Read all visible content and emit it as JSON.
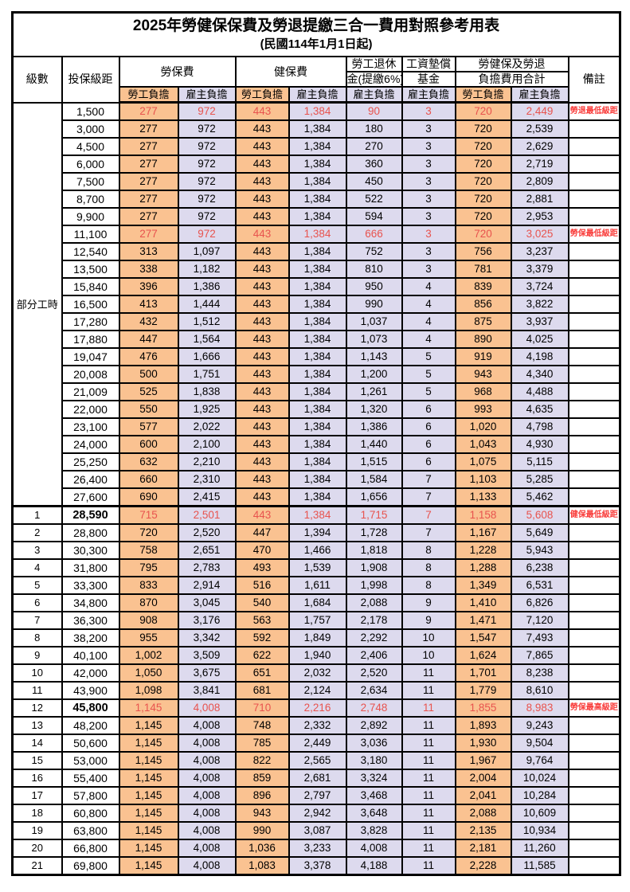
{
  "title": "2025年勞健保保費及勞退提繳三合一費用對照參考用表",
  "subtitle": "(民國114年1月1日起)",
  "header": {
    "level": "級數",
    "bracket": "投保級距",
    "labor_insurance": "勞保費",
    "health_insurance": "健保費",
    "pension_line1": "勞工退休",
    "pension_line2": "金(提繳6%)",
    "wage_fund_line1": "工資墊償",
    "wage_fund_line2": "基金",
    "total_line1": "勞健保及勞退",
    "total_line2": "負擔費用合計",
    "remark": "備註",
    "employee_label": "勞工負擔",
    "employer_label": "雇主負擔"
  },
  "colors": {
    "employee_bg": "#FAC291",
    "employer_bg": "#DDDAEE",
    "value_red": "#E8534E",
    "remark_red": "#F93D3B"
  },
  "part_time_label": "部分工時",
  "rows": [
    {
      "level": "部分工時",
      "level_rowspan": 23,
      "bracket": "1,500",
      "v": [
        "277",
        "972",
        "443",
        "1,384",
        "90",
        "3",
        "720",
        "2,449"
      ],
      "remark": "勞退最低級距",
      "red": true,
      "bold": false
    },
    {
      "level": null,
      "bracket": "3,000",
      "v": [
        "277",
        "972",
        "443",
        "1,384",
        "180",
        "3",
        "720",
        "2,539"
      ],
      "remark": "",
      "red": false,
      "bold": false
    },
    {
      "level": null,
      "bracket": "4,500",
      "v": [
        "277",
        "972",
        "443",
        "1,384",
        "270",
        "3",
        "720",
        "2,629"
      ],
      "remark": "",
      "red": false,
      "bold": false
    },
    {
      "level": null,
      "bracket": "6,000",
      "v": [
        "277",
        "972",
        "443",
        "1,384",
        "360",
        "3",
        "720",
        "2,719"
      ],
      "remark": "",
      "red": false,
      "bold": false
    },
    {
      "level": null,
      "bracket": "7,500",
      "v": [
        "277",
        "972",
        "443",
        "1,384",
        "450",
        "3",
        "720",
        "2,809"
      ],
      "remark": "",
      "red": false,
      "bold": false
    },
    {
      "level": null,
      "bracket": "8,700",
      "v": [
        "277",
        "972",
        "443",
        "1,384",
        "522",
        "3",
        "720",
        "2,881"
      ],
      "remark": "",
      "red": false,
      "bold": false
    },
    {
      "level": null,
      "bracket": "9,900",
      "v": [
        "277",
        "972",
        "443",
        "1,384",
        "594",
        "3",
        "720",
        "2,953"
      ],
      "remark": "",
      "red": false,
      "bold": false
    },
    {
      "level": null,
      "bracket": "11,100",
      "v": [
        "277",
        "972",
        "443",
        "1,384",
        "666",
        "3",
        "720",
        "3,025"
      ],
      "remark": "勞保最低級距",
      "red": true,
      "bold": false
    },
    {
      "level": null,
      "bracket": "12,540",
      "v": [
        "313",
        "1,097",
        "443",
        "1,384",
        "752",
        "3",
        "756",
        "3,237"
      ],
      "remark": "",
      "red": false,
      "bold": false
    },
    {
      "level": null,
      "bracket": "13,500",
      "v": [
        "338",
        "1,182",
        "443",
        "1,384",
        "810",
        "3",
        "781",
        "3,379"
      ],
      "remark": "",
      "red": false,
      "bold": false
    },
    {
      "level": null,
      "bracket": "15,840",
      "v": [
        "396",
        "1,386",
        "443",
        "1,384",
        "950",
        "4",
        "839",
        "3,724"
      ],
      "remark": "",
      "red": false,
      "bold": false
    },
    {
      "level": null,
      "bracket": "16,500",
      "v": [
        "413",
        "1,444",
        "443",
        "1,384",
        "990",
        "4",
        "856",
        "3,822"
      ],
      "remark": "",
      "red": false,
      "bold": false
    },
    {
      "level": null,
      "bracket": "17,280",
      "v": [
        "432",
        "1,512",
        "443",
        "1,384",
        "1,037",
        "4",
        "875",
        "3,937"
      ],
      "remark": "",
      "red": false,
      "bold": false
    },
    {
      "level": null,
      "bracket": "17,880",
      "v": [
        "447",
        "1,564",
        "443",
        "1,384",
        "1,073",
        "4",
        "890",
        "4,025"
      ],
      "remark": "",
      "red": false,
      "bold": false
    },
    {
      "level": null,
      "bracket": "19,047",
      "v": [
        "476",
        "1,666",
        "443",
        "1,384",
        "1,143",
        "5",
        "919",
        "4,198"
      ],
      "remark": "",
      "red": false,
      "bold": false
    },
    {
      "level": null,
      "bracket": "20,008",
      "v": [
        "500",
        "1,751",
        "443",
        "1,384",
        "1,200",
        "5",
        "943",
        "4,340"
      ],
      "remark": "",
      "red": false,
      "bold": false
    },
    {
      "level": null,
      "bracket": "21,009",
      "v": [
        "525",
        "1,838",
        "443",
        "1,384",
        "1,261",
        "5",
        "968",
        "4,488"
      ],
      "remark": "",
      "red": false,
      "bold": false
    },
    {
      "level": null,
      "bracket": "22,000",
      "v": [
        "550",
        "1,925",
        "443",
        "1,384",
        "1,320",
        "6",
        "993",
        "4,635"
      ],
      "remark": "",
      "red": false,
      "bold": false
    },
    {
      "level": null,
      "bracket": "23,100",
      "v": [
        "577",
        "2,022",
        "443",
        "1,384",
        "1,386",
        "6",
        "1,020",
        "4,798"
      ],
      "remark": "",
      "red": false,
      "bold": false
    },
    {
      "level": null,
      "bracket": "24,000",
      "v": [
        "600",
        "2,100",
        "443",
        "1,384",
        "1,440",
        "6",
        "1,043",
        "4,930"
      ],
      "remark": "",
      "red": false,
      "bold": false
    },
    {
      "level": null,
      "bracket": "25,250",
      "v": [
        "632",
        "2,210",
        "443",
        "1,384",
        "1,515",
        "6",
        "1,075",
        "5,115"
      ],
      "remark": "",
      "red": false,
      "bold": false
    },
    {
      "level": null,
      "bracket": "26,400",
      "v": [
        "660",
        "2,310",
        "443",
        "1,384",
        "1,584",
        "7",
        "1,103",
        "5,285"
      ],
      "remark": "",
      "red": false,
      "bold": false
    },
    {
      "level": null,
      "bracket": "27,600",
      "v": [
        "690",
        "2,415",
        "443",
        "1,384",
        "1,656",
        "7",
        "1,133",
        "5,462"
      ],
      "remark": "",
      "red": false,
      "bold": false
    },
    {
      "level": "1",
      "bracket": "28,590",
      "v": [
        "715",
        "2,501",
        "443",
        "1,384",
        "1,715",
        "7",
        "1,158",
        "5,608"
      ],
      "remark": "健保最低級距",
      "red": true,
      "bold": true,
      "thick_top": true
    },
    {
      "level": "2",
      "bracket": "28,800",
      "v": [
        "720",
        "2,520",
        "447",
        "1,394",
        "1,728",
        "7",
        "1,167",
        "5,649"
      ],
      "remark": "",
      "red": false,
      "bold": false
    },
    {
      "level": "3",
      "bracket": "30,300",
      "v": [
        "758",
        "2,651",
        "470",
        "1,466",
        "1,818",
        "8",
        "1,228",
        "5,943"
      ],
      "remark": "",
      "red": false,
      "bold": false
    },
    {
      "level": "4",
      "bracket": "31,800",
      "v": [
        "795",
        "2,783",
        "493",
        "1,539",
        "1,908",
        "8",
        "1,288",
        "6,238"
      ],
      "remark": "",
      "red": false,
      "bold": false
    },
    {
      "level": "5",
      "bracket": "33,300",
      "v": [
        "833",
        "2,914",
        "516",
        "1,611",
        "1,998",
        "8",
        "1,349",
        "6,531"
      ],
      "remark": "",
      "red": false,
      "bold": false
    },
    {
      "level": "6",
      "bracket": "34,800",
      "v": [
        "870",
        "3,045",
        "540",
        "1,684",
        "2,088",
        "9",
        "1,410",
        "6,826"
      ],
      "remark": "",
      "red": false,
      "bold": false
    },
    {
      "level": "7",
      "bracket": "36,300",
      "v": [
        "908",
        "3,176",
        "563",
        "1,757",
        "2,178",
        "9",
        "1,471",
        "7,120"
      ],
      "remark": "",
      "red": false,
      "bold": false
    },
    {
      "level": "8",
      "bracket": "38,200",
      "v": [
        "955",
        "3,342",
        "592",
        "1,849",
        "2,292",
        "10",
        "1,547",
        "7,493"
      ],
      "remark": "",
      "red": false,
      "bold": false
    },
    {
      "level": "9",
      "bracket": "40,100",
      "v": [
        "1,002",
        "3,509",
        "622",
        "1,940",
        "2,406",
        "10",
        "1,624",
        "7,865"
      ],
      "remark": "",
      "red": false,
      "bold": false
    },
    {
      "level": "10",
      "bracket": "42,000",
      "v": [
        "1,050",
        "3,675",
        "651",
        "2,032",
        "2,520",
        "11",
        "1,701",
        "8,238"
      ],
      "remark": "",
      "red": false,
      "bold": false
    },
    {
      "level": "11",
      "bracket": "43,900",
      "v": [
        "1,098",
        "3,841",
        "681",
        "2,124",
        "2,634",
        "11",
        "1,779",
        "8,610"
      ],
      "remark": "",
      "red": false,
      "bold": false
    },
    {
      "level": "12",
      "bracket": "45,800",
      "v": [
        "1,145",
        "4,008",
        "710",
        "2,216",
        "2,748",
        "11",
        "1,855",
        "8,983"
      ],
      "remark": "勞保最高級距",
      "red": true,
      "bold": true
    },
    {
      "level": "13",
      "bracket": "48,200",
      "v": [
        "1,145",
        "4,008",
        "748",
        "2,332",
        "2,892",
        "11",
        "1,893",
        "9,243"
      ],
      "remark": "",
      "red": false,
      "bold": false
    },
    {
      "level": "14",
      "bracket": "50,600",
      "v": [
        "1,145",
        "4,008",
        "785",
        "2,449",
        "3,036",
        "11",
        "1,930",
        "9,504"
      ],
      "remark": "",
      "red": false,
      "bold": false
    },
    {
      "level": "15",
      "bracket": "53,000",
      "v": [
        "1,145",
        "4,008",
        "822",
        "2,565",
        "3,180",
        "11",
        "1,967",
        "9,764"
      ],
      "remark": "",
      "red": false,
      "bold": false
    },
    {
      "level": "16",
      "bracket": "55,400",
      "v": [
        "1,145",
        "4,008",
        "859",
        "2,681",
        "3,324",
        "11",
        "2,004",
        "10,024"
      ],
      "remark": "",
      "red": false,
      "bold": false
    },
    {
      "level": "17",
      "bracket": "57,800",
      "v": [
        "1,145",
        "4,008",
        "896",
        "2,797",
        "3,468",
        "11",
        "2,041",
        "10,284"
      ],
      "remark": "",
      "red": false,
      "bold": false
    },
    {
      "level": "18",
      "bracket": "60,800",
      "v": [
        "1,145",
        "4,008",
        "943",
        "2,942",
        "3,648",
        "11",
        "2,088",
        "10,609"
      ],
      "remark": "",
      "red": false,
      "bold": false
    },
    {
      "level": "19",
      "bracket": "63,800",
      "v": [
        "1,145",
        "4,008",
        "990",
        "3,087",
        "3,828",
        "11",
        "2,135",
        "10,934"
      ],
      "remark": "",
      "red": false,
      "bold": false
    },
    {
      "level": "20",
      "bracket": "66,800",
      "v": [
        "1,145",
        "4,008",
        "1,036",
        "3,233",
        "4,008",
        "11",
        "2,181",
        "11,260"
      ],
      "remark": "",
      "red": false,
      "bold": false
    },
    {
      "level": "21",
      "bracket": "69,800",
      "v": [
        "1,145",
        "4,008",
        "1,083",
        "3,378",
        "4,188",
        "11",
        "2,228",
        "11,585"
      ],
      "remark": "",
      "red": false,
      "bold": false
    }
  ]
}
